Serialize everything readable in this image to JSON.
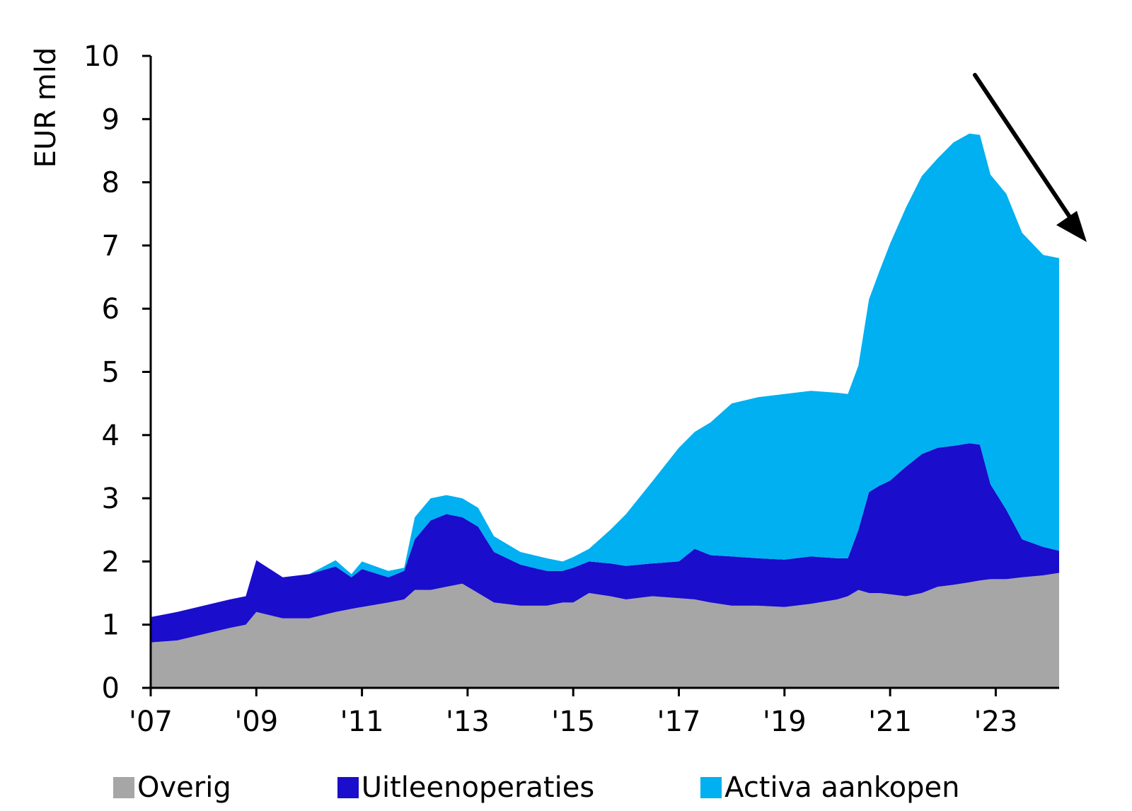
{
  "chart_data": {
    "type": "area",
    "stacked": true,
    "ylabel": "EUR mld",
    "xlabel": "",
    "ylim": [
      0,
      10
    ],
    "xlim": [
      2007.0,
      2024.2
    ],
    "yticks": [
      0,
      1,
      2,
      3,
      4,
      5,
      6,
      7,
      8,
      9,
      10
    ],
    "xticks": [
      {
        "value": 2007,
        "label": "'07"
      },
      {
        "value": 2009,
        "label": "'09"
      },
      {
        "value": 2011,
        "label": "'11"
      },
      {
        "value": 2013,
        "label": "'13"
      },
      {
        "value": 2015,
        "label": "'15"
      },
      {
        "value": 2017,
        "label": "'17"
      },
      {
        "value": 2019,
        "label": "'19"
      },
      {
        "value": 2021,
        "label": "'21"
      },
      {
        "value": 2023,
        "label": "'23"
      }
    ],
    "legend_position": "bottom",
    "x": [
      2007.0,
      2007.5,
      2008.0,
      2008.5,
      2008.8,
      2009.0,
      2009.5,
      2010.0,
      2010.5,
      2010.8,
      2011.0,
      2011.5,
      2011.8,
      2012.0,
      2012.3,
      2012.6,
      2012.9,
      2013.2,
      2013.5,
      2014.0,
      2014.5,
      2014.8,
      2015.0,
      2015.3,
      2015.7,
      2016.0,
      2016.5,
      2017.0,
      2017.3,
      2017.6,
      2018.0,
      2018.5,
      2019.0,
      2019.5,
      2020.0,
      2020.2,
      2020.4,
      2020.6,
      2020.8,
      2021.0,
      2021.3,
      2021.6,
      2021.9,
      2022.2,
      2022.5,
      2022.7,
      2022.9,
      2023.2,
      2023.5,
      2023.9,
      2024.2
    ],
    "series": [
      {
        "name": "Overig",
        "color": "#a6a6a6",
        "values": [
          0.72,
          0.75,
          0.85,
          0.95,
          1.0,
          1.2,
          1.1,
          1.1,
          1.2,
          1.25,
          1.28,
          1.35,
          1.4,
          1.55,
          1.55,
          1.6,
          1.65,
          1.5,
          1.35,
          1.3,
          1.3,
          1.35,
          1.35,
          1.5,
          1.45,
          1.4,
          1.45,
          1.42,
          1.4,
          1.35,
          1.3,
          1.3,
          1.28,
          1.33,
          1.4,
          1.45,
          1.55,
          1.5,
          1.5,
          1.48,
          1.45,
          1.5,
          1.6,
          1.63,
          1.67,
          1.7,
          1.72,
          1.72,
          1.75,
          1.78,
          1.82
        ]
      },
      {
        "name": "Uitleenoperaties",
        "color": "#1a0dcc",
        "values": [
          0.4,
          0.45,
          0.45,
          0.45,
          0.45,
          0.82,
          0.65,
          0.7,
          0.72,
          0.5,
          0.6,
          0.4,
          0.45,
          0.8,
          1.1,
          1.15,
          1.05,
          1.05,
          0.8,
          0.65,
          0.55,
          0.5,
          0.55,
          0.5,
          0.52,
          0.53,
          0.52,
          0.58,
          0.8,
          0.75,
          0.78,
          0.75,
          0.75,
          0.75,
          0.65,
          0.6,
          0.95,
          1.6,
          1.7,
          1.8,
          2.05,
          2.2,
          2.2,
          2.2,
          2.2,
          2.15,
          1.5,
          1.1,
          0.6,
          0.45,
          0.35
        ]
      },
      {
        "name": "Activa aankopen",
        "color": "#00b0f0",
        "values": [
          0,
          0,
          0,
          0,
          0,
          0,
          0,
          0,
          0.1,
          0.05,
          0.12,
          0.1,
          0.05,
          0.35,
          0.35,
          0.3,
          0.3,
          0.3,
          0.25,
          0.2,
          0.2,
          0.15,
          0.17,
          0.2,
          0.53,
          0.82,
          1.3,
          1.8,
          1.85,
          2.1,
          2.42,
          2.55,
          2.62,
          2.62,
          2.62,
          2.6,
          2.6,
          3.05,
          3.4,
          3.75,
          4.1,
          4.4,
          4.58,
          4.8,
          4.9,
          4.9,
          4.9,
          5.0,
          4.85,
          4.62,
          4.63
        ]
      }
    ]
  },
  "annotations": {
    "arrow_color": "#000000",
    "arrow_meaning": "downward trend"
  }
}
